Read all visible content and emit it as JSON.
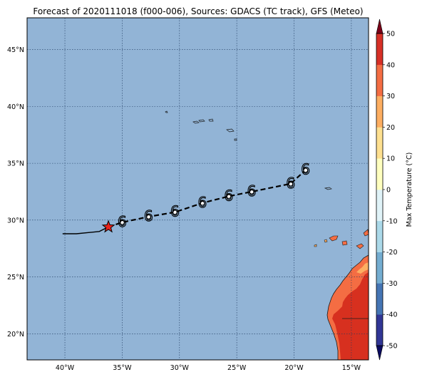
{
  "title": "Forecast of 2020111018 (f000-006), Sources: GDACS (TC track), GFS (Meteo)",
  "colors": {
    "ocean": "#92b4d6",
    "coast": "#1a1a1a",
    "land_hot": "#d7301f",
    "land_warm": "#f46d43",
    "land_mild": "#fdae61",
    "track": "#000000",
    "star": "#e8221b"
  },
  "map": {
    "lon_range": [
      -43.3,
      -13.5
    ],
    "lat_range": [
      17.7,
      47.8
    ],
    "lon_ticks": [
      {
        "value": -40,
        "label": "40°W"
      },
      {
        "value": -35,
        "label": "35°W"
      },
      {
        "value": -30,
        "label": "30°W"
      },
      {
        "value": -25,
        "label": "25°W"
      },
      {
        "value": -20,
        "label": "20°W"
      },
      {
        "value": -15,
        "label": "15°W"
      }
    ],
    "lat_ticks": [
      {
        "value": 20,
        "label": "20°N"
      },
      {
        "value": 25,
        "label": "25°N"
      },
      {
        "value": 30,
        "label": "30°N"
      },
      {
        "value": 35,
        "label": "35°N"
      },
      {
        "value": 40,
        "label": "40°N"
      },
      {
        "value": 45,
        "label": "45°N"
      }
    ]
  },
  "storm": {
    "current_position": {
      "lon": -36.2,
      "lat": 29.4
    },
    "past_track": [
      {
        "lon": -40.2,
        "lat": 28.8
      },
      {
        "lon": -39.0,
        "lat": 28.8
      },
      {
        "lon": -37.0,
        "lat": 29.0
      },
      {
        "lon": -36.2,
        "lat": 29.4
      }
    ],
    "forecast_track": [
      {
        "lon": -36.2,
        "lat": 29.4
      },
      {
        "lon": -35.0,
        "lat": 29.8
      },
      {
        "lon": -32.7,
        "lat": 30.3
      },
      {
        "lon": -30.4,
        "lat": 30.7
      },
      {
        "lon": -28.0,
        "lat": 31.5
      },
      {
        "lon": -25.7,
        "lat": 32.1
      },
      {
        "lon": -23.7,
        "lat": 32.5
      },
      {
        "lon": -20.3,
        "lat": 33.2
      },
      {
        "lon": -19.0,
        "lat": 34.4
      }
    ],
    "cyclone_symbol": "6"
  },
  "colorbar": {
    "label": "Max Temperature (°C)",
    "levels": [
      -50,
      -40,
      -30,
      -20,
      -10,
      0,
      10,
      20,
      30,
      40,
      50
    ],
    "colors": [
      "#313695",
      "#4575b4",
      "#74add1",
      "#abd9e9",
      "#e0f3f8",
      "#ffffbf",
      "#fee090",
      "#fdae61",
      "#f46d43",
      "#d73027",
      "#a50026"
    ],
    "under_color": "#0b0b60",
    "over_color": "#7a0018"
  }
}
